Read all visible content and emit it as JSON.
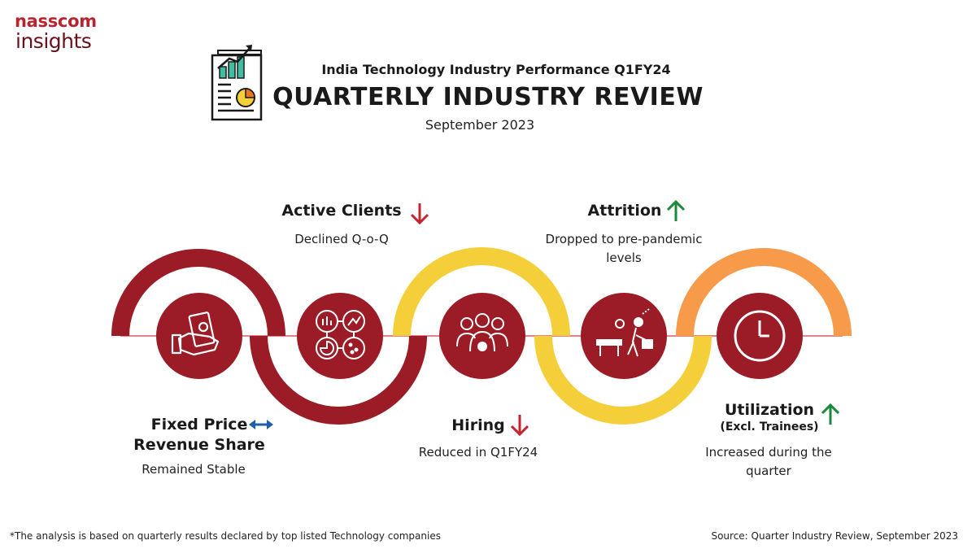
{
  "logo": {
    "line1": "nasscom",
    "line2": "insights"
  },
  "header": {
    "subtitle": "India Technology Industry Performance Q1FY24",
    "title": "QUARTERLY INDUSTRY REVIEW",
    "date": "September 2023"
  },
  "items": {
    "fixed_price": {
      "title_line1": "Fixed Price",
      "title_line2": "Revenue Share",
      "desc": "Remained Stable",
      "trend": "stable",
      "trend_color": "#1f5fa8"
    },
    "active_clients": {
      "title": "Active Clients",
      "desc": "Declined Q-o-Q",
      "trend": "down",
      "trend_color": "#c8232c"
    },
    "hiring": {
      "title": "Hiring",
      "desc": "Reduced in Q1FY24",
      "trend": "down",
      "trend_color": "#c8232c"
    },
    "attrition": {
      "title": "Attrition",
      "desc_line1": "Dropped to pre-pandemic",
      "desc_line2": "levels",
      "trend": "up",
      "trend_color": "#1a8a3a"
    },
    "utilization": {
      "title": "Utilization",
      "subtitle": "(Excl. Trainees)",
      "desc_line1": "Increased during the",
      "desc_line2": "quarter",
      "trend": "up",
      "trend_color": "#1a8a3a"
    }
  },
  "colors": {
    "maroon": "#9b1b26",
    "yellow": "#f5cf3a",
    "orange": "#f79a4a",
    "green": "#1a8a3a",
    "red": "#c8232c",
    "blue": "#1f5fa8"
  },
  "icons": [
    "report-chart-icon",
    "money-hand-icon",
    "analytics-icon",
    "team-icon",
    "leaving-employee-icon",
    "clock-icon"
  ],
  "footer": {
    "note": "*The analysis is based on quarterly results declared by top listed Technology companies",
    "source": "Source: Quarter Industry Review, September 2023"
  }
}
